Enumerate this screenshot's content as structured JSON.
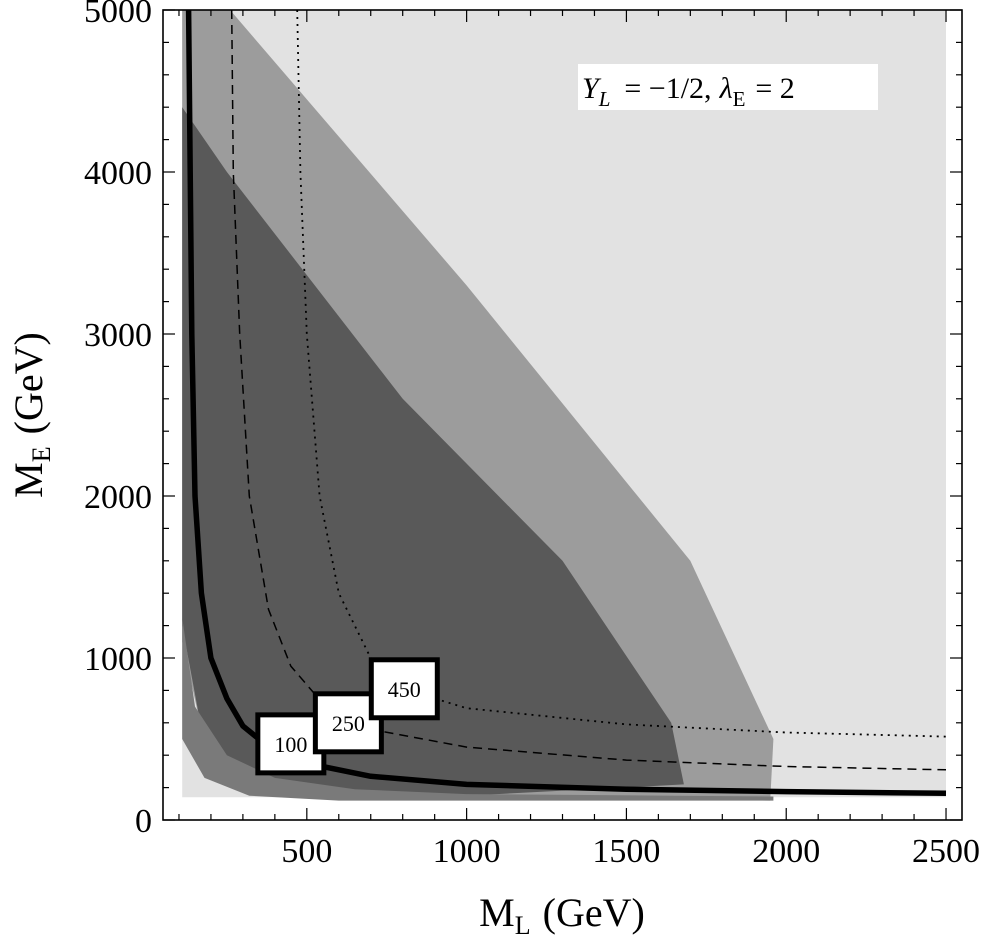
{
  "chart_data": {
    "type": "contour",
    "annotation": {
      "y_symbol": "Y",
      "y_sub": "L",
      "y_value": "= −1/2,",
      "lambda_symbol": "λ",
      "lambda_sub": "E",
      "lambda_value": "= 2"
    },
    "xlabel": {
      "main": "M",
      "sub": "L",
      "unit": "(GeV)"
    },
    "ylabel": {
      "main": "M",
      "sub": "E",
      "unit": "(GeV)"
    },
    "xlim": [
      50,
      2550
    ],
    "ylim": [
      0,
      5000
    ],
    "xticks": [
      500,
      1000,
      1500,
      2000,
      2500
    ],
    "yticks": [
      0,
      1000,
      2000,
      3000,
      4000,
      5000
    ],
    "regions": [
      {
        "name": "excluded-light",
        "color": "#e2e2e2",
        "boundary": [
          [
            110,
            5000
          ],
          [
            2500,
            5000
          ],
          [
            2500,
            140
          ],
          [
            110,
            140
          ]
        ]
      },
      {
        "name": "band-medium",
        "color": "#9c9c9c",
        "boundary": [
          [
            110,
            5000
          ],
          [
            260,
            5000
          ],
          [
            1000,
            3300
          ],
          [
            1700,
            1600
          ],
          [
            1960,
            500
          ],
          [
            1950,
            120
          ],
          [
            900,
            150
          ],
          [
            400,
            180
          ],
          [
            200,
            300
          ],
          [
            110,
            1100
          ]
        ]
      },
      {
        "name": "band-dark",
        "color": "#595959",
        "boundary": [
          [
            110,
            4400
          ],
          [
            250,
            4000
          ],
          [
            800,
            2600
          ],
          [
            1300,
            1600
          ],
          [
            1640,
            600
          ],
          [
            1680,
            220
          ],
          [
            1000,
            150
          ],
          [
            500,
            150
          ],
          [
            200,
            250
          ],
          [
            110,
            1200
          ]
        ]
      },
      {
        "name": "band-darker",
        "color": "#7a7a7a",
        "boundary": [
          [
            110,
            1250
          ],
          [
            150,
            700
          ],
          [
            250,
            400
          ],
          [
            400,
            260
          ],
          [
            650,
            190
          ],
          [
            1000,
            160
          ],
          [
            1650,
            150
          ],
          [
            1960,
            145
          ],
          [
            1960,
            120
          ],
          [
            1000,
            120
          ],
          [
            600,
            120
          ],
          [
            320,
            150
          ],
          [
            180,
            260
          ],
          [
            110,
            500
          ]
        ]
      }
    ],
    "series": [
      {
        "contour_value": "100",
        "style": "solid-thick",
        "points": [
          [
            130,
            5000
          ],
          [
            140,
            3000
          ],
          [
            150,
            2000
          ],
          [
            170,
            1400
          ],
          [
            200,
            1000
          ],
          [
            250,
            750
          ],
          [
            300,
            580
          ],
          [
            400,
            420
          ],
          [
            500,
            350
          ],
          [
            700,
            270
          ],
          [
            1000,
            220
          ],
          [
            1500,
            190
          ],
          [
            2000,
            175
          ],
          [
            2500,
            165
          ]
        ]
      },
      {
        "contour_value": "250",
        "style": "dashed",
        "points": [
          [
            265,
            5000
          ],
          [
            270,
            4000
          ],
          [
            290,
            3000
          ],
          [
            320,
            2000
          ],
          [
            380,
            1300
          ],
          [
            450,
            950
          ],
          [
            550,
            720
          ],
          [
            700,
            560
          ],
          [
            1000,
            450
          ],
          [
            1500,
            370
          ],
          [
            2000,
            330
          ],
          [
            2500,
            310
          ]
        ]
      },
      {
        "contour_value": "450",
        "style": "dotted",
        "points": [
          [
            470,
            5000
          ],
          [
            480,
            4000
          ],
          [
            500,
            3000
          ],
          [
            540,
            2000
          ],
          [
            600,
            1400
          ],
          [
            700,
            1000
          ],
          [
            850,
            780
          ],
          [
            1000,
            690
          ],
          [
            1500,
            590
          ],
          [
            2000,
            540
          ],
          [
            2500,
            515
          ]
        ]
      }
    ],
    "contour_labels": [
      {
        "text": "100",
        "x": 450,
        "y": 470
      },
      {
        "text": "250",
        "x": 630,
        "y": 600
      },
      {
        "text": "450",
        "x": 805,
        "y": 810
      }
    ]
  }
}
